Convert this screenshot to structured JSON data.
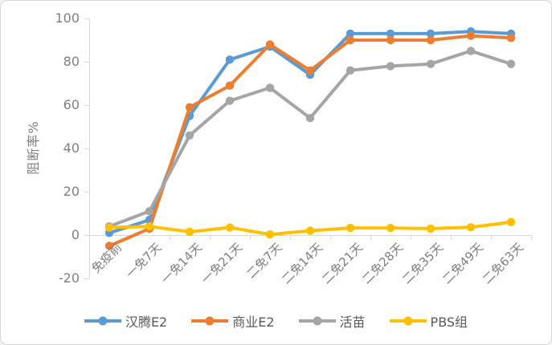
{
  "chart": {
    "background_color": "#FFFFFF",
    "border_color": "#D7D7D7",
    "axis_line_color": "#D9D9D9",
    "tick_label_color": "#7F7F7F",
    "legend_label_color": "#595959"
  },
  "chart_data": {
    "type": "line",
    "title": "",
    "xlabel": "",
    "ylabel": "阻断率%",
    "ylim": [
      -20,
      100
    ],
    "yticks": [
      100,
      80,
      60,
      40,
      20,
      0,
      -20
    ],
    "grid": false,
    "markers": "filled-circle",
    "legend_position": "bottom-center",
    "categories": [
      "免疫前",
      "一免7天",
      "一免14天",
      "一免21天",
      "二免7天",
      "二免14天",
      "二免21天",
      "二免28天",
      "二免35天",
      "二免49天",
      "二免63天"
    ],
    "series": [
      {
        "name": "汉腾E2",
        "color": "#5B9BD5",
        "values": [
          1,
          7,
          55,
          81,
          87,
          74,
          93,
          93,
          93,
          94,
          93
        ]
      },
      {
        "name": "商业E2",
        "color": "#ED7D31",
        "values": [
          -5,
          3,
          59,
          69,
          88,
          76,
          90,
          90,
          90,
          92,
          91
        ]
      },
      {
        "name": "活苗",
        "color": "#A5A5A5",
        "values": [
          4,
          11,
          46,
          62,
          68,
          54,
          76,
          78,
          79,
          85,
          79
        ]
      },
      {
        "name": "PBS组",
        "color": "#FFC000",
        "values": [
          3.5,
          4,
          1.5,
          3.5,
          0.3,
          2,
          3.3,
          3.3,
          3,
          3.6,
          6
        ]
      }
    ]
  }
}
